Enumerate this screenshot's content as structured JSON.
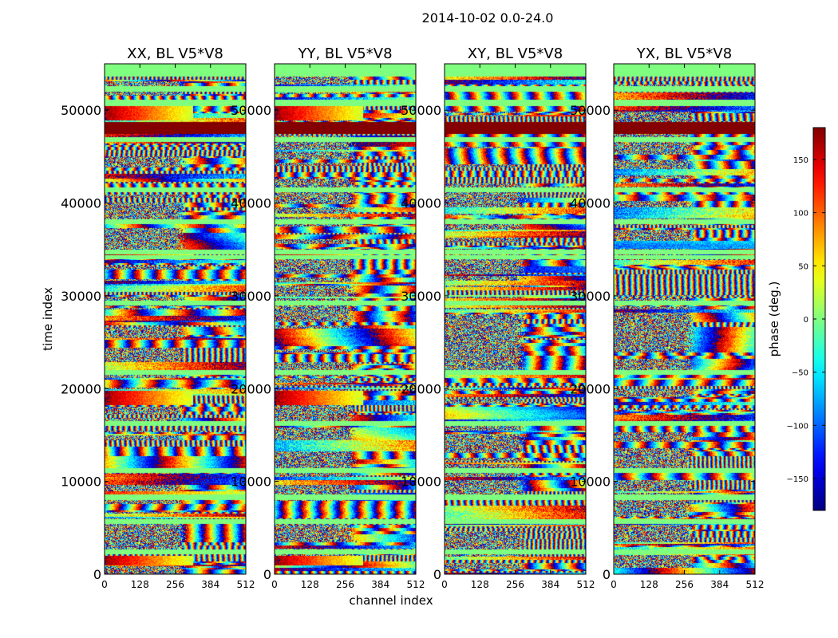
{
  "chart_data": {
    "type": "heatmap",
    "suptitle": "2014-10-02 0.0-24.0",
    "xlabel": "channel index",
    "ylabel": "time index",
    "xlim": [
      0,
      512
    ],
    "ylim": [
      0,
      55000
    ],
    "xticks": [
      "0",
      "128",
      "256",
      "384",
      "512"
    ],
    "xtick_values": [
      0,
      128,
      256,
      384,
      512
    ],
    "yticks": [
      "0",
      "10000",
      "20000",
      "30000",
      "40000",
      "50000"
    ],
    "ytick_values": [
      0,
      10000,
      20000,
      30000,
      40000,
      50000
    ],
    "colorbar": {
      "label": "phase (deg.)",
      "range": [
        -180,
        180
      ],
      "ticks": [
        "−150",
        "−100",
        "−50",
        "0",
        "50",
        "100",
        "150"
      ],
      "tick_values": [
        -150,
        -100,
        -50,
        0,
        50,
        100,
        150
      ]
    },
    "panels": [
      {
        "title": "XX, BL V5*V8",
        "strong_phase_bands": true
      },
      {
        "title": "YY, BL V5*V8",
        "strong_phase_bands": true
      },
      {
        "title": "XY, BL V5*V8",
        "strong_phase_bands": false
      },
      {
        "title": "YX, BL V5*V8",
        "strong_phase_bands": false
      }
    ],
    "constant_phase_rows": [
      {
        "y_range": [
          47500,
          48800
        ],
        "phase": 180
      },
      {
        "y_range": [
          46600,
          47100
        ],
        "phase": 0
      },
      {
        "y_range": [
          53700,
          55000
        ],
        "phase": 0
      },
      {
        "y_range": [
          52000,
          52600
        ],
        "phase": 0
      },
      {
        "y_range": [
          50500,
          51200
        ],
        "phase": 0
      },
      {
        "y_range": [
          41200,
          41700
        ],
        "phase": 0
      },
      {
        "y_range": [
          37800,
          38300
        ],
        "phase": 0
      },
      {
        "y_range": [
          34500,
          35000
        ],
        "phase": 0
      },
      {
        "y_range": [
          34000,
          34400
        ],
        "phase": 0
      },
      {
        "y_range": [
          29000,
          29500
        ],
        "phase": 0
      },
      {
        "y_range": [
          21500,
          22000
        ],
        "phase": 0
      },
      {
        "y_range": [
          16000,
          16500
        ],
        "phase": 0
      },
      {
        "y_range": [
          11000,
          11500
        ],
        "phase": 0
      },
      {
        "y_range": [
          8000,
          8600
        ],
        "phase": 0
      },
      {
        "y_range": [
          5500,
          6000
        ],
        "phase": 0
      },
      {
        "y_range": [
          2200,
          2700
        ],
        "phase": 0
      }
    ]
  }
}
